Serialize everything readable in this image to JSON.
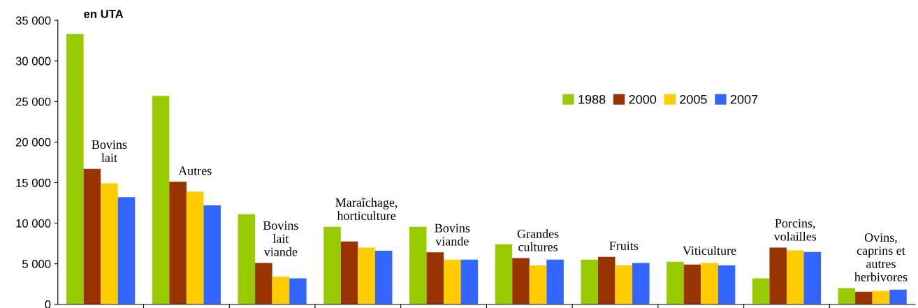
{
  "chart_data": {
    "type": "bar",
    "ylabel": "en UTA",
    "categories": [
      "Bovins\nlait",
      "Autres",
      "Bovins\nlait\nviande",
      "Maraîchage,\nhorticulture",
      "Bovins\nviande",
      "Grandes\ncultures",
      "Fruits",
      "Viticulture",
      "Porcins,\nvolailles",
      "Ovins,\ncaprins et\nautres\nherbivores"
    ],
    "series": [
      {
        "name": "1988",
        "color": "#99cc00",
        "values": [
          33300,
          25700,
          11100,
          9550,
          9550,
          7400,
          5500,
          5250,
          3200,
          2000
        ]
      },
      {
        "name": "2000",
        "color": "#993300",
        "values": [
          16700,
          15100,
          5100,
          7750,
          6400,
          5700,
          5850,
          4900,
          7000,
          1550
        ]
      },
      {
        "name": "2005",
        "color": "#ffcc00",
        "values": [
          14900,
          13900,
          3400,
          7000,
          5500,
          4800,
          4800,
          5100,
          6650,
          1650
        ]
      },
      {
        "name": "2007",
        "color": "#3366ff",
        "values": [
          13200,
          12200,
          3200,
          6600,
          5500,
          5500,
          5100,
          4800,
          6450,
          1800
        ]
      }
    ],
    "ylim": [
      0,
      35000
    ],
    "yticks": [
      0,
      {
        "value": 5000,
        "label": "5 000"
      },
      {
        "value": 10000,
        "label": "10 000"
      },
      {
        "value": 15000,
        "label": "15 000"
      },
      {
        "value": 20000,
        "label": "20 000"
      },
      {
        "value": 25000,
        "label": "25 000"
      },
      {
        "value": 30000,
        "label": "30 000"
      },
      {
        "value": 35000,
        "label": "35 000"
      }
    ],
    "grid": false,
    "legend": "top right"
  }
}
